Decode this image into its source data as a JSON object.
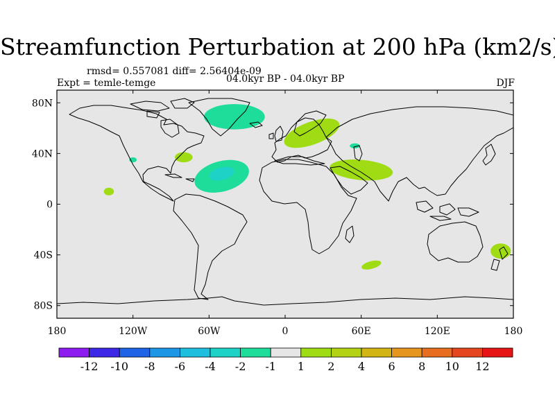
{
  "figure": {
    "title": "Streamfunction Perturbation at 200 hPa (km2/s)",
    "stats": "rmsd= 0.557081 diff= 2.56404e-09",
    "experiment": "Expt = temle-temge",
    "period": "04.0kyr BP - 04.0kyr BP",
    "season": "DJF"
  },
  "map": {
    "projection": "cylindrical-equidistant",
    "lon_range": [
      -180,
      180
    ],
    "lat_range": [
      -90,
      90
    ],
    "background_color": "#e6e6e6",
    "coastline_color": "#000000",
    "lat_ticks": [
      {
        "lat": 80,
        "label": "80N"
      },
      {
        "lat": 40,
        "label": "40N"
      },
      {
        "lat": 0,
        "label": "0"
      },
      {
        "lat": -40,
        "label": "40S"
      },
      {
        "lat": -80,
        "label": "80S"
      }
    ],
    "lon_ticks": [
      {
        "lon": -180,
        "label": "180"
      },
      {
        "lon": -120,
        "label": "120W"
      },
      {
        "lon": -60,
        "label": "60W"
      },
      {
        "lon": 0,
        "label": "0"
      },
      {
        "lon": 60,
        "label": "60E"
      },
      {
        "lon": 120,
        "label": "120E"
      },
      {
        "lon": 180,
        "label": "180"
      }
    ]
  },
  "colorbar": {
    "colors": [
      "#8c1cf0",
      "#3c28e6",
      "#1e64e6",
      "#1e96e6",
      "#1ebede",
      "#1ed2c8",
      "#1edc9a",
      "#e6e6e6",
      "#a0dc14",
      "#b4d214",
      "#d2b414",
      "#e6961e",
      "#e66e1e",
      "#e6461e",
      "#e61414"
    ],
    "labels": [
      "-12",
      "-10",
      "-8",
      "-6",
      "-4",
      "-2",
      "-1",
      "1",
      "2",
      "4",
      "6",
      "8",
      "10",
      "12"
    ]
  },
  "anomalies": [
    {
      "name": "canada-negative",
      "lon": -40,
      "lat": 69,
      "rlon": 24,
      "rlat": 10,
      "color": "#1edc9a",
      "rot": 0
    },
    {
      "name": "europe-positive",
      "lon": 21,
      "lat": 56,
      "rlon": 23,
      "rlat": 9,
      "color": "#a0dc14",
      "rot": -20
    },
    {
      "name": "east-us-positive",
      "lon": -80,
      "lat": 37,
      "rlon": 7,
      "rlat": 4,
      "color": "#a0dc14",
      "rot": 0
    },
    {
      "name": "baja-negative",
      "lon": -120,
      "lat": 35,
      "rlon": 3,
      "rlat": 2,
      "color": "#1edc9a",
      "rot": 0
    },
    {
      "name": "atlantic-outer",
      "lon": -50,
      "lat": 22,
      "rlon": 22,
      "rlat": 12,
      "color": "#1edc9a",
      "rot": -15
    },
    {
      "name": "atlantic-core",
      "lon": -50,
      "lat": 24,
      "rlon": 10,
      "rlat": 5,
      "color": "#1ed2c8",
      "rot": -15
    },
    {
      "name": "caspian-negative",
      "lon": 55,
      "lat": 46,
      "rlon": 4,
      "rlat": 2,
      "color": "#1edc9a",
      "rot": 0
    },
    {
      "name": "india-positive",
      "lon": 60,
      "lat": 27,
      "rlon": 25,
      "rlat": 8,
      "color": "#a0dc14",
      "rot": 5
    },
    {
      "name": "pacific-positive",
      "lon": -139,
      "lat": 10,
      "rlon": 4,
      "rlat": 3,
      "color": "#a0dc14",
      "rot": 0
    },
    {
      "name": "south-indian-positive",
      "lon": 68,
      "lat": -48,
      "rlon": 8,
      "rlat": 3,
      "color": "#a0dc14",
      "rot": -15
    },
    {
      "name": "new-zealand-positive",
      "lon": 170,
      "lat": -37,
      "rlon": 8,
      "rlat": 6,
      "color": "#a0dc14",
      "rot": 0
    }
  ]
}
